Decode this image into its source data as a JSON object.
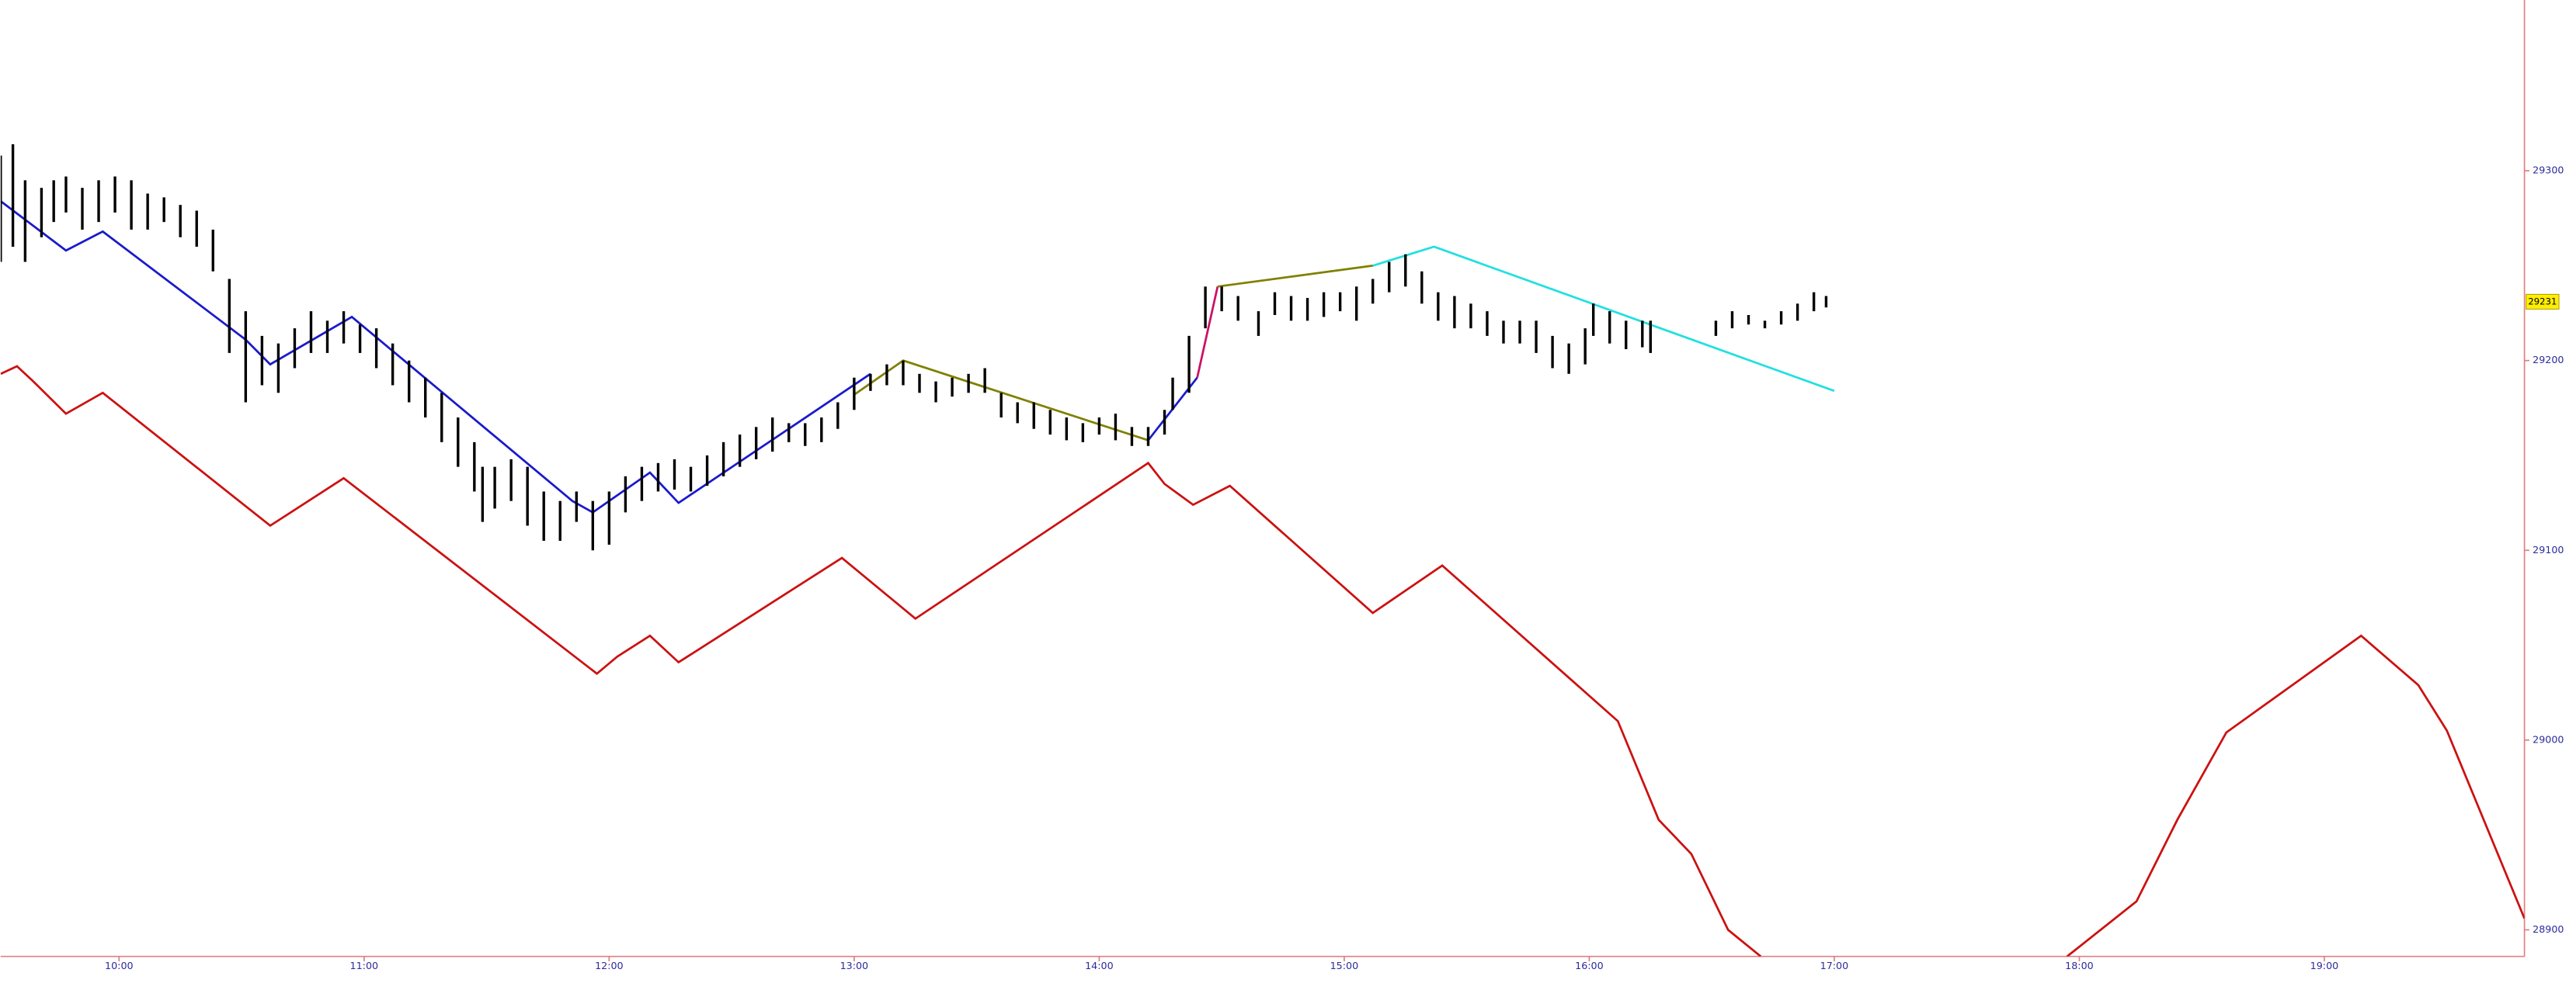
{
  "chart_data": {
    "type": "ohlc",
    "xlim": [
      571,
      1189
    ],
    "ylim": [
      28886,
      29390
    ],
    "xticks": [
      {
        "value": 600,
        "label": "10:00"
      },
      {
        "value": 660,
        "label": "11:00"
      },
      {
        "value": 720,
        "label": "12:00"
      },
      {
        "value": 780,
        "label": "13:00"
      },
      {
        "value": 840,
        "label": "14:00"
      },
      {
        "value": 900,
        "label": "15:00"
      },
      {
        "value": 960,
        "label": "16:00"
      },
      {
        "value": 1020,
        "label": "17:00"
      },
      {
        "value": 1080,
        "label": "18:00"
      },
      {
        "value": 1140,
        "label": "19:00"
      }
    ],
    "yticks": [
      28900,
      29000,
      29100,
      29200,
      29300
    ],
    "last_price": 29231,
    "bar_color": "#000000",
    "bars": {
      "x": [
        571,
        574,
        577,
        581,
        584,
        587,
        591,
        595,
        599,
        603,
        607,
        611,
        615,
        619,
        623,
        627,
        631,
        635,
        639,
        643,
        647,
        651,
        655,
        659,
        663,
        667,
        671,
        675,
        679,
        683,
        687,
        689,
        692,
        696,
        700,
        704,
        708,
        712,
        716,
        720,
        724,
        728,
        732,
        736,
        740,
        744,
        748,
        752,
        756,
        760,
        764,
        768,
        772,
        776,
        780,
        784,
        788,
        792,
        796,
        800,
        804,
        808,
        812,
        816,
        820,
        824,
        828,
        832,
        836,
        840,
        844,
        848,
        852,
        856,
        858,
        862,
        866,
        870,
        874,
        879,
        883,
        887,
        891,
        895,
        899,
        903,
        907,
        911,
        915,
        919,
        923,
        927,
        931,
        935,
        939,
        943,
        947,
        951,
        955,
        959,
        961,
        965,
        969,
        973,
        975,
        991,
        995,
        999,
        1003,
        1007,
        1011,
        1015,
        1018
      ],
      "high": [
        29308,
        29314,
        29295,
        29291,
        29295,
        29297,
        29291,
        29295,
        29297,
        29295,
        29288,
        29286,
        29282,
        29279,
        29269,
        29243,
        29226,
        29213,
        29209,
        29217,
        29226,
        29221,
        29226,
        29219,
        29217,
        29209,
        29200,
        29191,
        29183,
        29170,
        29157,
        29144,
        29144,
        29148,
        29144,
        29131,
        29126,
        29131,
        29126,
        29131,
        29139,
        29144,
        29146,
        29148,
        29144,
        29150,
        29157,
        29161,
        29165,
        29170,
        29167,
        29167,
        29170,
        29178,
        29191,
        29193,
        29198,
        29200,
        29193,
        29189,
        29191,
        29193,
        29196,
        29183,
        29178,
        29178,
        29174,
        29170,
        29167,
        29170,
        29172,
        29165,
        29165,
        29174,
        29191,
        29213,
        29239,
        29239,
        29234,
        29226,
        29236,
        29234,
        29233,
        29236,
        29236,
        29239,
        29243,
        29252,
        29256,
        29247,
        29236,
        29234,
        29230,
        29226,
        29221,
        29221,
        29221,
        29213,
        29209,
        29217,
        29230,
        29226,
        29221,
        29221,
        29221,
        29221,
        29226,
        29224,
        29221,
        29226,
        29230,
        29236,
        29234
      ],
      "low": [
        29252,
        29260,
        29252,
        29265,
        29273,
        29278,
        29269,
        29273,
        29278,
        29269,
        29269,
        29273,
        29265,
        29260,
        29247,
        29204,
        29178,
        29187,
        29183,
        29196,
        29204,
        29204,
        29209,
        29204,
        29196,
        29187,
        29178,
        29170,
        29157,
        29144,
        29131,
        29115,
        29122,
        29126,
        29113,
        29105,
        29105,
        29115,
        29100,
        29103,
        29120,
        29126,
        29131,
        29132,
        29131,
        29134,
        29139,
        29144,
        29148,
        29152,
        29157,
        29155,
        29157,
        29164,
        29174,
        29184,
        29187,
        29187,
        29183,
        29178,
        29181,
        29183,
        29183,
        29170,
        29167,
        29164,
        29161,
        29158,
        29157,
        29161,
        29158,
        29155,
        29155,
        29161,
        29174,
        29183,
        29217,
        29226,
        29221,
        29213,
        29224,
        29221,
        29221,
        29223,
        29226,
        29221,
        29230,
        29236,
        29239,
        29230,
        29221,
        29217,
        29217,
        29213,
        29209,
        29209,
        29204,
        29196,
        29193,
        29198,
        29213,
        29209,
        29206,
        29207,
        29204,
        29213,
        29217,
        29219,
        29217,
        29219,
        29221,
        29226,
        29228
      ]
    },
    "series": [
      {
        "color": "#cc1111",
        "x": [
          571,
          575,
          579,
          587,
          596,
          637,
          655,
          717,
          722,
          730,
          737,
          777,
          795,
          852,
          856,
          863,
          872,
          907,
          924,
          967,
          977,
          985,
          994,
          1002,
          null,
          1077,
          1094,
          1104,
          1116,
          1149,
          1163,
          1170,
          1189
        ],
        "values": [
          29193,
          29197,
          29189,
          29172,
          29183,
          29113,
          29138,
          29035,
          29044,
          29055,
          29041,
          29096,
          29064,
          29146,
          29135,
          29124,
          29134,
          29067,
          29092,
          29010,
          28958,
          28940,
          28900,
          28886,
          null,
          28886,
          28915,
          28958,
          29004,
          29055,
          29029,
          29005,
          28906
        ]
      },
      {
        "color": "#1a1acc",
        "x": [
          571,
          587,
          596,
          631,
          637,
          657,
          711,
          716,
          730,
          737,
          784
        ],
        "values": [
          29284,
          29258,
          29268,
          29211,
          29198,
          29223,
          29126,
          29120,
          29141,
          29125,
          29193
        ]
      },
      {
        "color": "#808000",
        "x": [
          780,
          792,
          852
        ],
        "values": [
          29182,
          29200,
          29158
        ]
      },
      {
        "color": "#1a1acc",
        "x": [
          852,
          864
        ],
        "values": [
          29158,
          29191
        ]
      },
      {
        "color": "#cc1166",
        "x": [
          864,
          869
        ],
        "values": [
          29191,
          29239
        ]
      },
      {
        "color": "#808000",
        "x": [
          869,
          907
        ],
        "values": [
          29239,
          29250
        ]
      },
      {
        "color": "#22e0e0",
        "x": [
          907,
          922,
          1020
        ],
        "values": [
          29250,
          29260,
          29184
        ]
      }
    ]
  }
}
